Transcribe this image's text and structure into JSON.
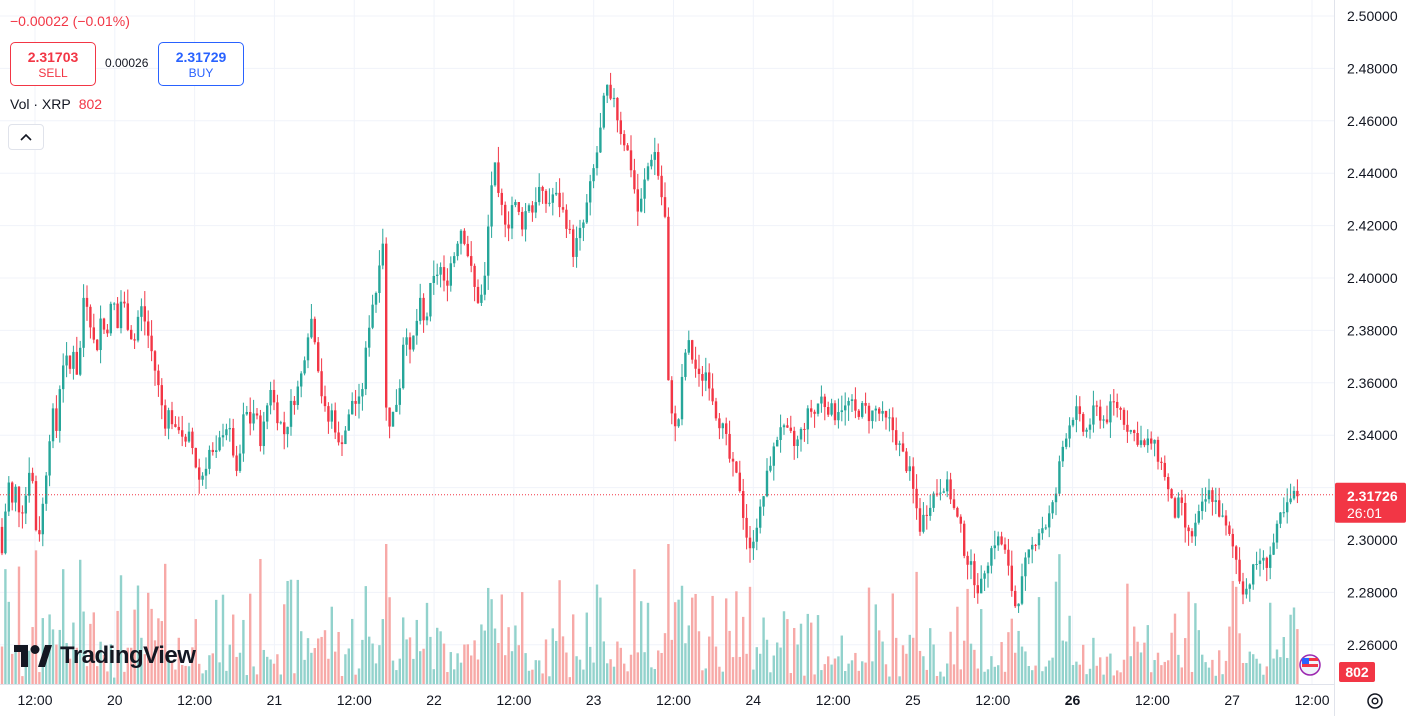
{
  "header": {
    "change": "−0.00022 (−0.01%)",
    "sell_price": "2.31703",
    "sell_label": "SELL",
    "spread": "0.00026",
    "buy_price": "2.31729",
    "buy_label": "BUY",
    "vol_label": "Vol · XRP",
    "vol_value": "802"
  },
  "brand": {
    "name": "TradingView"
  },
  "current": {
    "price": "2.31726",
    "countdown": "26:01",
    "volume_badge": "802"
  },
  "colors": {
    "up": "#26a69a",
    "down": "#f23645",
    "vol_up": "#92d2cc",
    "vol_down": "#f7a9a7",
    "grid": "#f0f3fa",
    "axis_text": "#131722"
  },
  "chart_data": {
    "type": "candlestick",
    "y_axis_ticks": [
      "2.50000",
      "2.48000",
      "2.46000",
      "2.44000",
      "2.42000",
      "2.40000",
      "2.38000",
      "2.36000",
      "2.34000",
      "2.32000",
      "2.30000",
      "2.28000",
      "2.26000"
    ],
    "x_axis_ticks": [
      "12:00",
      "20",
      "12:00",
      "21",
      "12:00",
      "22",
      "12:00",
      "23",
      "12:00",
      "24",
      "12:00",
      "25",
      "12:00",
      "26",
      "12:00",
      "27",
      "12:00"
    ],
    "ylim": [
      2.25,
      2.5
    ],
    "path_points": [
      [
        0,
        2.305
      ],
      [
        3,
        2.29
      ],
      [
        5,
        2.31
      ],
      [
        9,
        2.322
      ],
      [
        12,
        2.313
      ],
      [
        16,
        2.32
      ],
      [
        20,
        2.31
      ],
      [
        25,
        2.315
      ],
      [
        30,
        2.33
      ],
      [
        34,
        2.318
      ],
      [
        37,
        2.298
      ],
      [
        42,
        2.31
      ],
      [
        47,
        2.33
      ],
      [
        52,
        2.35
      ],
      [
        56,
        2.34
      ],
      [
        60,
        2.36
      ],
      [
        64,
        2.37
      ],
      [
        70,
        2.365
      ],
      [
        74,
        2.375
      ],
      [
        78,
        2.36
      ],
      [
        84,
        2.395
      ],
      [
        88,
        2.39
      ],
      [
        92,
        2.38
      ],
      [
        96,
        2.37
      ],
      [
        100,
        2.385
      ],
      [
        106,
        2.378
      ],
      [
        110,
        2.388
      ],
      [
        114,
        2.39
      ],
      [
        118,
        2.38
      ],
      [
        122,
        2.395
      ],
      [
        126,
        2.385
      ],
      [
        130,
        2.38
      ],
      [
        134,
        2.375
      ],
      [
        140,
        2.39
      ],
      [
        144,
        2.385
      ],
      [
        150,
        2.375
      ],
      [
        155,
        2.365
      ],
      [
        160,
        2.355
      ],
      [
        165,
        2.345
      ],
      [
        170,
        2.35
      ],
      [
        175,
        2.34
      ],
      [
        180,
        2.345
      ],
      [
        185,
        2.335
      ],
      [
        190,
        2.34
      ],
      [
        195,
        2.33
      ],
      [
        200,
        2.322
      ],
      [
        205,
        2.328
      ],
      [
        210,
        2.335
      ],
      [
        215,
        2.33
      ],
      [
        220,
        2.338
      ],
      [
        225,
        2.345
      ],
      [
        230,
        2.34
      ],
      [
        235,
        2.33
      ],
      [
        238,
        2.318
      ],
      [
        241,
        2.34
      ],
      [
        245,
        2.35
      ],
      [
        250,
        2.345
      ],
      [
        255,
        2.35
      ],
      [
        260,
        2.338
      ],
      [
        265,
        2.345
      ],
      [
        270,
        2.36
      ],
      [
        275,
        2.35
      ],
      [
        280,
        2.345
      ],
      [
        285,
        2.34
      ],
      [
        290,
        2.35
      ],
      [
        295,
        2.355
      ],
      [
        300,
        2.36
      ],
      [
        304,
        2.37
      ],
      [
        308,
        2.38
      ],
      [
        312,
        2.385
      ],
      [
        316,
        2.375
      ],
      [
        320,
        2.36
      ],
      [
        324,
        2.35
      ],
      [
        328,
        2.345
      ],
      [
        333,
        2.35
      ],
      [
        338,
        2.335
      ],
      [
        343,
        2.34
      ],
      [
        348,
        2.345
      ],
      [
        353,
        2.355
      ],
      [
        358,
        2.35
      ],
      [
        363,
        2.36
      ],
      [
        368,
        2.38
      ],
      [
        372,
        2.39
      ],
      [
        376,
        2.395
      ],
      [
        380,
        2.41
      ],
      [
        383,
        2.415
      ],
      [
        386,
        2.35
      ],
      [
        390,
        2.345
      ],
      [
        395,
        2.35
      ],
      [
        400,
        2.36
      ],
      [
        405,
        2.385
      ],
      [
        410,
        2.37
      ],
      [
        415,
        2.38
      ],
      [
        420,
        2.39
      ],
      [
        425,
        2.38
      ],
      [
        430,
        2.395
      ],
      [
        435,
        2.4
      ],
      [
        440,
        2.405
      ],
      [
        445,
        2.395
      ],
      [
        450,
        2.405
      ],
      [
        455,
        2.41
      ],
      [
        460,
        2.42
      ],
      [
        465,
        2.415
      ],
      [
        470,
        2.405
      ],
      [
        475,
        2.395
      ],
      [
        480,
        2.39
      ],
      [
        485,
        2.4
      ],
      [
        490,
        2.43
      ],
      [
        494,
        2.445
      ],
      [
        498,
        2.43
      ],
      [
        503,
        2.425
      ],
      [
        508,
        2.42
      ],
      [
        513,
        2.43
      ],
      [
        518,
        2.425
      ],
      [
        523,
        2.42
      ],
      [
        528,
        2.43
      ],
      [
        533,
        2.425
      ],
      [
        538,
        2.435
      ],
      [
        543,
        2.43
      ],
      [
        548,
        2.428
      ],
      [
        553,
        2.432
      ],
      [
        558,
        2.43
      ],
      [
        563,
        2.425
      ],
      [
        568,
        2.42
      ],
      [
        573,
        2.41
      ],
      [
        578,
        2.415
      ],
      [
        583,
        2.42
      ],
      [
        588,
        2.43
      ],
      [
        593,
        2.44
      ],
      [
        598,
        2.45
      ],
      [
        602,
        2.46
      ],
      [
        606,
        2.475
      ],
      [
        610,
        2.465
      ],
      [
        614,
        2.47
      ],
      [
        618,
        2.46
      ],
      [
        622,
        2.455
      ],
      [
        626,
        2.45
      ],
      [
        630,
        2.445
      ],
      [
        634,
        2.435
      ],
      [
        638,
        2.425
      ],
      [
        642,
        2.43
      ],
      [
        646,
        2.44
      ],
      [
        650,
        2.445
      ],
      [
        654,
        2.45
      ],
      [
        658,
        2.44
      ],
      [
        662,
        2.43
      ],
      [
        666,
        2.42
      ],
      [
        668,
        2.36
      ],
      [
        672,
        2.35
      ],
      [
        676,
        2.34
      ],
      [
        680,
        2.35
      ],
      [
        684,
        2.37
      ],
      [
        688,
        2.375
      ],
      [
        692,
        2.37
      ],
      [
        696,
        2.365
      ],
      [
        700,
        2.36
      ],
      [
        705,
        2.365
      ],
      [
        710,
        2.36
      ],
      [
        715,
        2.35
      ],
      [
        720,
        2.345
      ],
      [
        725,
        2.34
      ],
      [
        730,
        2.33
      ],
      [
        735,
        2.325
      ],
      [
        740,
        2.32
      ],
      [
        745,
        2.305
      ],
      [
        750,
        2.295
      ],
      [
        755,
        2.305
      ],
      [
        760,
        2.31
      ],
      [
        765,
        2.32
      ],
      [
        770,
        2.33
      ],
      [
        775,
        2.335
      ],
      [
        780,
        2.345
      ],
      [
        785,
        2.34
      ],
      [
        790,
        2.34
      ],
      [
        795,
        2.335
      ],
      [
        800,
        2.34
      ],
      [
        805,
        2.345
      ],
      [
        810,
        2.35
      ],
      [
        815,
        2.348
      ],
      [
        820,
        2.355
      ],
      [
        825,
        2.352
      ],
      [
        830,
        2.35
      ],
      [
        835,
        2.348
      ],
      [
        840,
        2.352
      ],
      [
        845,
        2.35
      ],
      [
        850,
        2.353
      ],
      [
        855,
        2.348
      ],
      [
        860,
        2.35
      ],
      [
        865,
        2.35
      ],
      [
        870,
        2.347
      ],
      [
        875,
        2.35
      ],
      [
        880,
        2.348
      ],
      [
        885,
        2.345
      ],
      [
        890,
        2.345
      ],
      [
        895,
        2.34
      ],
      [
        900,
        2.335
      ],
      [
        905,
        2.33
      ],
      [
        910,
        2.325
      ],
      [
        915,
        2.315
      ],
      [
        920,
        2.305
      ],
      [
        925,
        2.31
      ],
      [
        930,
        2.315
      ],
      [
        935,
        2.318
      ],
      [
        940,
        2.32
      ],
      [
        945,
        2.322
      ],
      [
        950,
        2.318
      ],
      [
        955,
        2.31
      ],
      [
        960,
        2.305
      ],
      [
        965,
        2.295
      ],
      [
        970,
        2.29
      ],
      [
        975,
        2.285
      ],
      [
        980,
        2.28
      ],
      [
        985,
        2.29
      ],
      [
        990,
        2.295
      ],
      [
        995,
        2.3
      ],
      [
        1000,
        2.3
      ],
      [
        1005,
        2.295
      ],
      [
        1010,
        2.285
      ],
      [
        1015,
        2.275
      ],
      [
        1020,
        2.28
      ],
      [
        1025,
        2.29
      ],
      [
        1030,
        2.295
      ],
      [
        1035,
        2.3
      ],
      [
        1040,
        2.305
      ],
      [
        1045,
        2.305
      ],
      [
        1050,
        2.31
      ],
      [
        1055,
        2.315
      ],
      [
        1060,
        2.33
      ],
      [
        1065,
        2.34
      ],
      [
        1070,
        2.345
      ],
      [
        1075,
        2.35
      ],
      [
        1080,
        2.345
      ],
      [
        1085,
        2.34
      ],
      [
        1090,
        2.345
      ],
      [
        1095,
        2.35
      ],
      [
        1100,
        2.348
      ],
      [
        1105,
        2.345
      ],
      [
        1110,
        2.35
      ],
      [
        1115,
        2.352
      ],
      [
        1120,
        2.35
      ],
      [
        1125,
        2.345
      ],
      [
        1130,
        2.342
      ],
      [
        1135,
        2.34
      ],
      [
        1140,
        2.338
      ],
      [
        1145,
        2.335
      ],
      [
        1150,
        2.338
      ],
      [
        1155,
        2.335
      ],
      [
        1160,
        2.33
      ],
      [
        1165,
        2.325
      ],
      [
        1170,
        2.315
      ],
      [
        1175,
        2.31
      ],
      [
        1180,
        2.315
      ],
      [
        1185,
        2.305
      ],
      [
        1190,
        2.3
      ],
      [
        1195,
        2.305
      ],
      [
        1200,
        2.31
      ],
      [
        1205,
        2.315
      ],
      [
        1210,
        2.318
      ],
      [
        1215,
        2.315
      ],
      [
        1220,
        2.31
      ],
      [
        1225,
        2.305
      ],
      [
        1230,
        2.3
      ],
      [
        1235,
        2.295
      ],
      [
        1240,
        2.285
      ],
      [
        1245,
        2.28
      ],
      [
        1250,
        2.285
      ],
      [
        1255,
        2.29
      ],
      [
        1260,
        2.293
      ],
      [
        1265,
        2.29
      ],
      [
        1270,
        2.295
      ],
      [
        1275,
        2.3
      ],
      [
        1280,
        2.308
      ],
      [
        1285,
        2.31
      ],
      [
        1290,
        2.315
      ],
      [
        1295,
        2.317
      ],
      [
        1300,
        2.318
      ]
    ]
  }
}
